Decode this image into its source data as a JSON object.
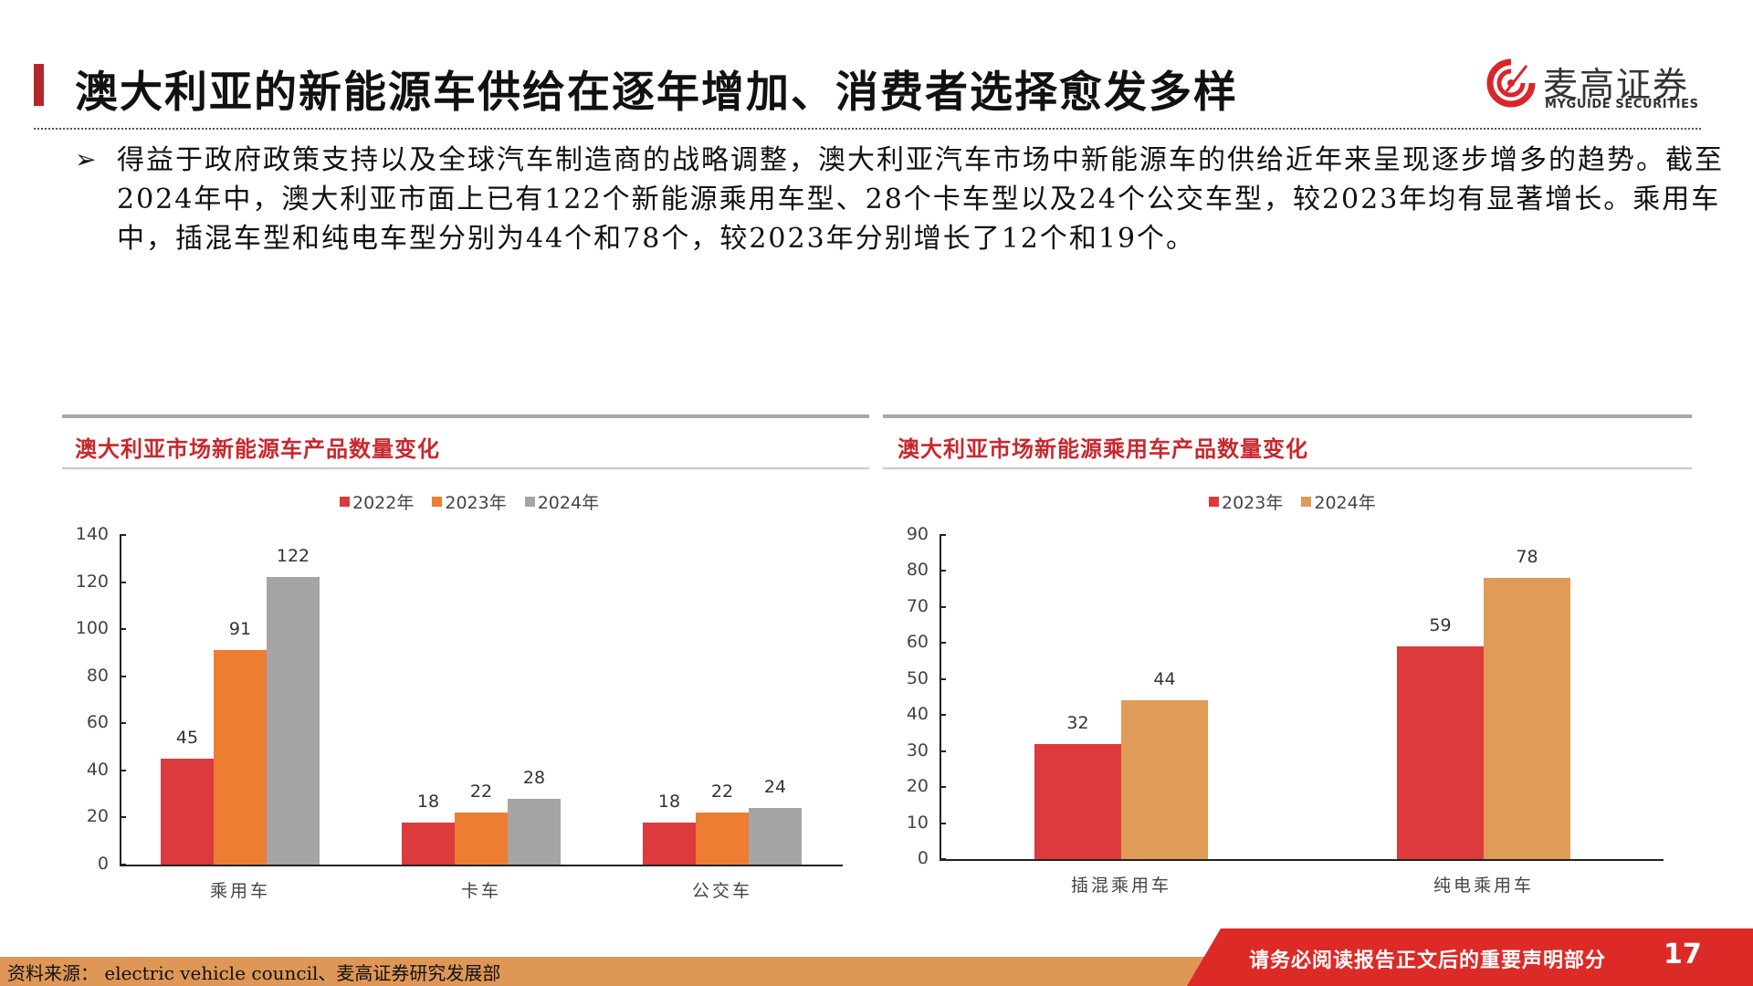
{
  "header": {
    "title": "澳大利亚的新能源车供给在逐年增加、消费者选择愈发多样",
    "logo_cn": "麦高证券",
    "logo_en": "MYGUIDE SECURITIES"
  },
  "body": {
    "bullet_icon": "arrow-bullet-icon",
    "text": "得益于政府政策支持以及全球汽车制造商的战略调整，澳大利亚汽车市场中新能源车的供给近年来呈现逐步增多的趋势。截至2024年中，澳大利亚市面上已有122个新能源乘用车型、28个卡车型以及24个公交车型，较2023年均有显著增长。乘用车中，插混车型和纯电车型分别为44个和78个，较2023年分别增长了12个和19个。"
  },
  "colors": {
    "accent_red": "#dc3a3d",
    "orange": "#ed7d31",
    "gray": "#a5a5a5",
    "light_orange": "#e09b59",
    "title_red": "#c8282e"
  },
  "chart_data": [
    {
      "type": "bar",
      "title": "澳大利亚市场新能源车产品数量变化",
      "categories": [
        "乘用车",
        "卡车",
        "公交车"
      ],
      "series": [
        {
          "name": "2022年",
          "values": [
            45,
            18,
            18
          ],
          "color": "#dc3a3d"
        },
        {
          "name": "2023年",
          "values": [
            91,
            22,
            22
          ],
          "color": "#ed7d31"
        },
        {
          "name": "2024年",
          "values": [
            122,
            28,
            24
          ],
          "color": "#a5a5a5"
        }
      ],
      "yticks": [
        "0",
        "20",
        "40",
        "60",
        "80",
        "100",
        "120",
        "140"
      ],
      "ylim": [
        0,
        140
      ],
      "xlabel": "",
      "ylabel": "",
      "legend_position": "top",
      "grid": false
    },
    {
      "type": "bar",
      "title": "澳大利亚市场新能源乘用车产品数量变化",
      "categories": [
        "插混乘用车",
        "纯电乘用车"
      ],
      "series": [
        {
          "name": "2023年",
          "values": [
            32,
            59
          ],
          "color": "#dc3a3d"
        },
        {
          "name": "2024年",
          "values": [
            44,
            78
          ],
          "color": "#e09b59"
        }
      ],
      "yticks": [
        "0",
        "10",
        "20",
        "30",
        "40",
        "50",
        "60",
        "70",
        "80",
        "90"
      ],
      "ylim": [
        0,
        90
      ],
      "xlabel": "",
      "ylabel": "",
      "legend_position": "top",
      "grid": false
    }
  ],
  "footer": {
    "source": "资料来源： electric vehicle council、麦高证券研究发展部",
    "notice": "请务必阅读报告正文后的重要声明部分",
    "page_number": "17"
  }
}
